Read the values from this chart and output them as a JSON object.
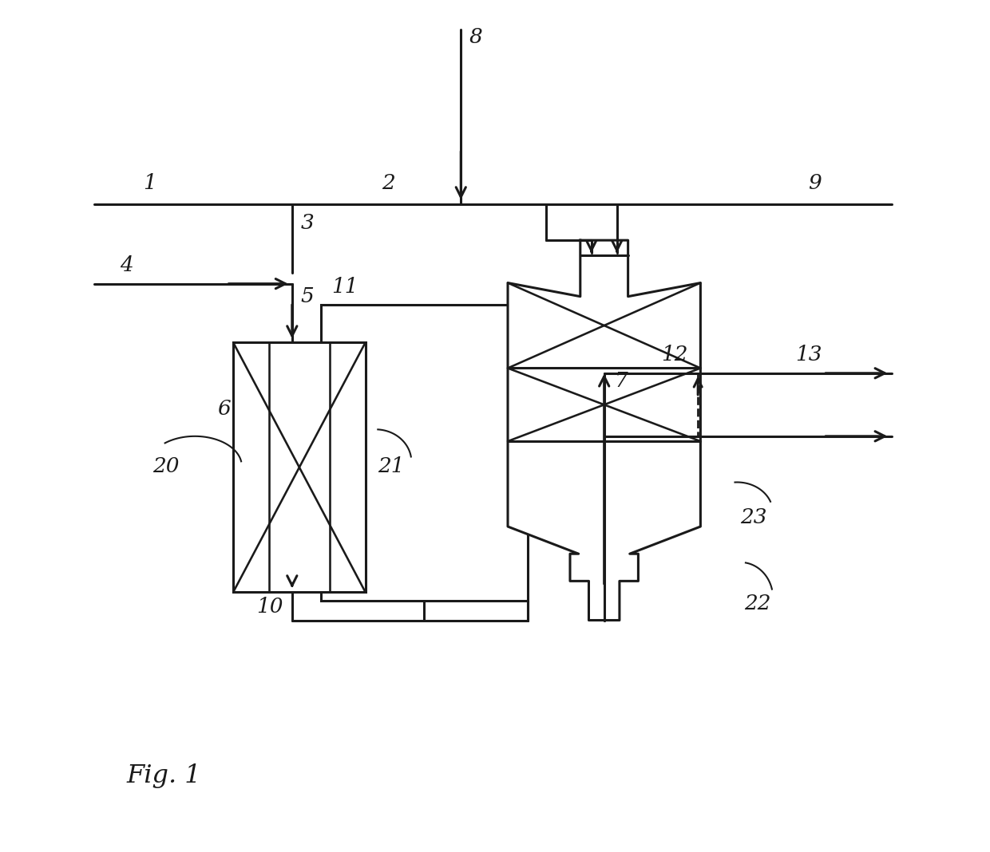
{
  "bg_color": "#ffffff",
  "line_color": "#1a1a1a",
  "lw": 2.2,
  "fig_caption": "Fig. 1"
}
